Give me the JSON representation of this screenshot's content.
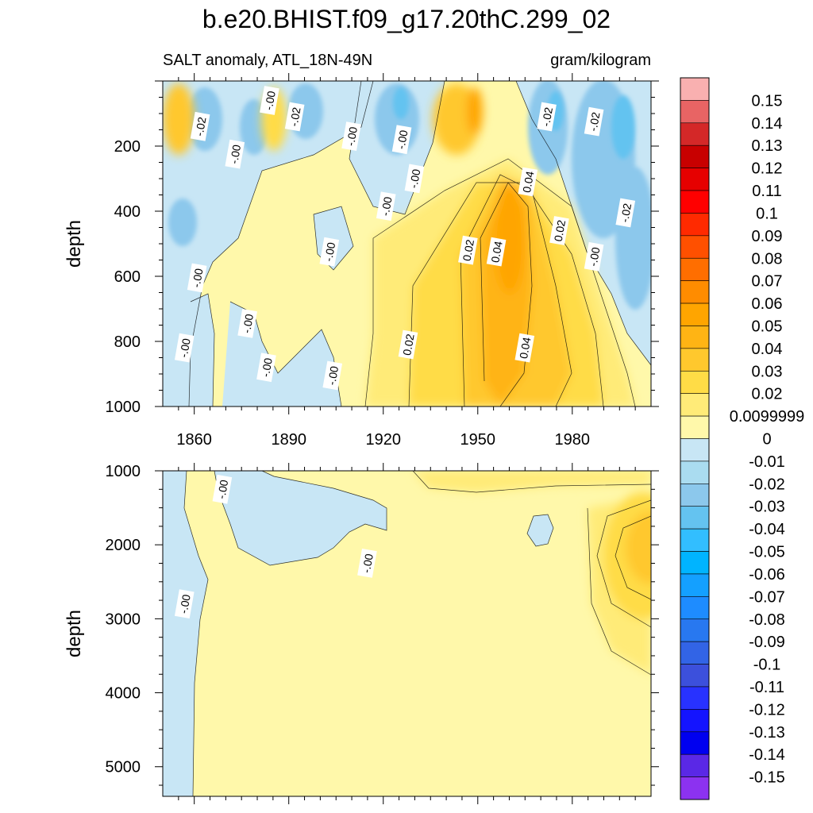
{
  "figure": {
    "title": "b.e20.BHIST.f09_g17.20thC.299_02",
    "left_subtitle": "SALT anomaly, ATL_18N-49N",
    "right_subtitle": "gram/kilogram"
  },
  "colorbar": {
    "levels": [
      "0.15",
      "0.14",
      "0.13",
      "0.12",
      "0.11",
      "0.1",
      "0.09",
      "0.08",
      "0.07",
      "0.06",
      "0.05",
      "0.04",
      "0.03",
      "0.02",
      "0.0099999",
      "0",
      "-0.01",
      "-0.02",
      "-0.03",
      "-0.04",
      "-0.05",
      "-0.06",
      "-0.07",
      "-0.08",
      "-0.09",
      "-0.1",
      "-0.11",
      "-0.12",
      "-0.13",
      "-0.14",
      "-0.15"
    ],
    "colors": [
      "#f9b0b0",
      "#e86464",
      "#d42828",
      "#c80000",
      "#e60000",
      "#ff0000",
      "#ff2a00",
      "#ff5000",
      "#ff6e00",
      "#ff8c00",
      "#ffa500",
      "#ffb414",
      "#ffc82d",
      "#ffdc46",
      "#ffeb78",
      "#fff8aa",
      "#c8e6f5",
      "#aadcf0",
      "#8cc8ec",
      "#64c3f0",
      "#32beff",
      "#00b4ff",
      "#14a0ff",
      "#1e8cff",
      "#2878f0",
      "#3264e6",
      "#3c50dc",
      "#2832ff",
      "#1414ff",
      "#0000f0",
      "#5a28e6",
      "#8c32f0"
    ]
  },
  "chart_data": [
    {
      "type": "heatmap",
      "panel": "upper",
      "ylabel": "depth",
      "xlim": [
        1850,
        2005
      ],
      "ylim": [
        1000,
        0
      ],
      "xticks": [
        "1860",
        "1890",
        "1920",
        "1950",
        "1980"
      ],
      "yticks": [
        "200",
        "400",
        "600",
        "800",
        "1000"
      ],
      "contour_labels": [
        {
          "text": "-.02",
          "x": 1862,
          "y": 140
        },
        {
          "text": "-.00",
          "x": 1873,
          "y": 225
        },
        {
          "text": "-.00",
          "x": 1884,
          "y": 60
        },
        {
          "text": "-.02",
          "x": 1892,
          "y": 110
        },
        {
          "text": "-.00",
          "x": 1910,
          "y": 170
        },
        {
          "text": "-.00",
          "x": 1926,
          "y": 180
        },
        {
          "text": "-.00",
          "x": 1930,
          "y": 300
        },
        {
          "text": "-.00",
          "x": 1921,
          "y": 385
        },
        {
          "text": "-.00",
          "x": 1903,
          "y": 525
        },
        {
          "text": "-.00",
          "x": 1861,
          "y": 605
        },
        {
          "text": "-.00",
          "x": 1877,
          "y": 745
        },
        {
          "text": "-.00",
          "x": 1857,
          "y": 820
        },
        {
          "text": "-.00",
          "x": 1883,
          "y": 880
        },
        {
          "text": "-.00",
          "x": 1904,
          "y": 905
        },
        {
          "text": "0.02",
          "x": 1928,
          "y": 810
        },
        {
          "text": "0.02",
          "x": 1947,
          "y": 520
        },
        {
          "text": "0.04",
          "x": 1956,
          "y": 525
        },
        {
          "text": "0.04",
          "x": 1966,
          "y": 310
        },
        {
          "text": "0.02",
          "x": 1976,
          "y": 460
        },
        {
          "text": "-.02",
          "x": 1972,
          "y": 110
        },
        {
          "text": "-.02",
          "x": 1987,
          "y": 125
        },
        {
          "text": "-.00",
          "x": 1987,
          "y": 540
        },
        {
          "text": "-.02",
          "x": 1997,
          "y": 405
        },
        {
          "text": "0.04",
          "x": 1965,
          "y": 820
        }
      ]
    },
    {
      "type": "heatmap",
      "panel": "lower",
      "ylabel": "depth",
      "xlim": [
        1850,
        2005
      ],
      "ylim": [
        5400,
        1000
      ],
      "yticks": [
        "1000",
        "2000",
        "3000",
        "4000",
        "5000"
      ],
      "contour_labels": [
        {
          "text": "-.00",
          "x": 1869,
          "y": 1250
        },
        {
          "text": "-.00",
          "x": 1915,
          "y": 2250
        },
        {
          "text": "-.00",
          "x": 1857,
          "y": 2800
        }
      ]
    }
  ]
}
